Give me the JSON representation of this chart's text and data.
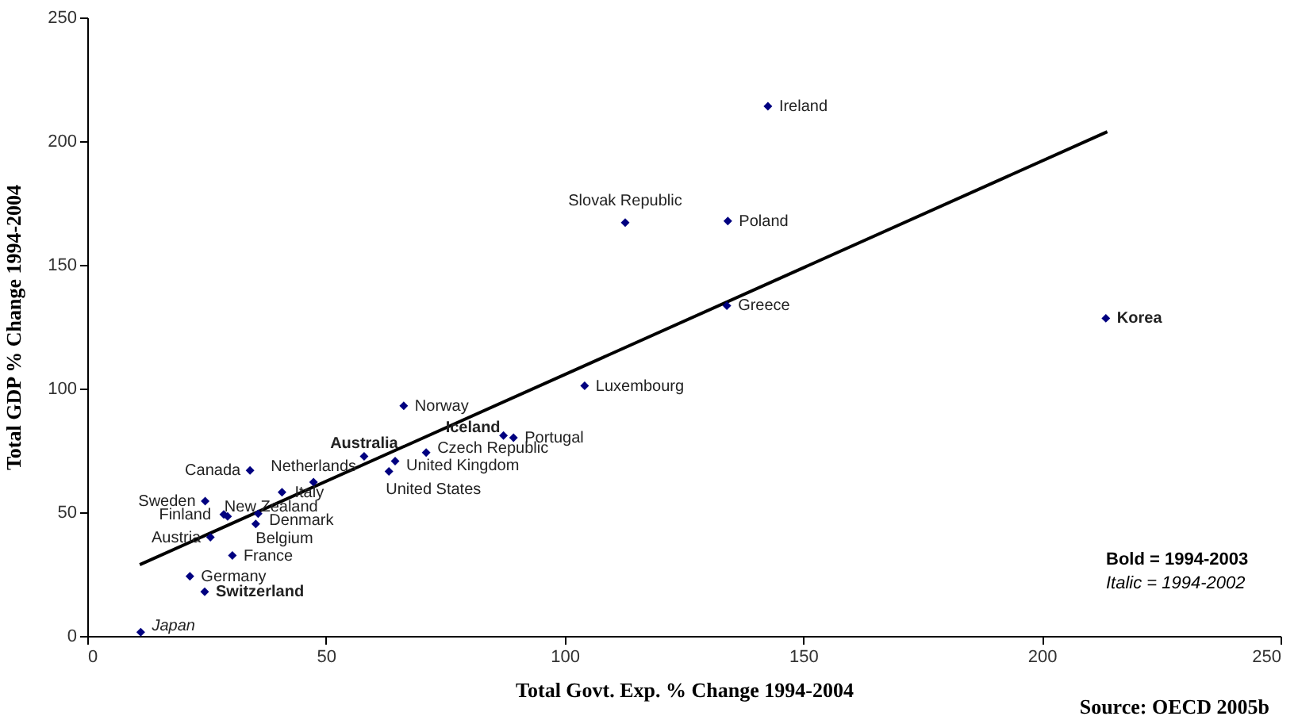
{
  "chart_data": {
    "type": "scatter",
    "xlabel": "Total Govt. Exp. % Change 1994-2004",
    "ylabel": "Total GDP % Change 1994-2004",
    "xlim": [
      0,
      250
    ],
    "xticks": [
      0,
      50,
      100,
      150,
      200,
      250
    ],
    "ylim": [
      0,
      250
    ],
    "yticks": [
      0,
      50,
      100,
      150,
      200,
      250
    ],
    "grid": false,
    "marker": "diamond",
    "series": [
      {
        "type": "scatter",
        "color": "#000080",
        "x": [
          142.6,
          112.7,
          134.2,
          134.0,
          104.2,
          66.3,
          89.3,
          71.0,
          64.5,
          63.2,
          34.1,
          47.4,
          40.8,
          24.7,
          29.4,
          28.6,
          35.8,
          35.3,
          25.8,
          30.4,
          21.5
        ],
        "values": [
          214.1,
          167.1,
          167.7,
          133.5,
          101.1,
          93.0,
          80.1,
          74.1,
          70.7,
          66.5,
          66.9,
          62.2,
          58.1,
          54.5,
          48.3,
          49.1,
          49.4,
          45.3,
          39.9,
          32.5,
          24.1
        ],
        "value_labels": [
          "Ireland",
          "Slovak Republic",
          "Poland",
          "Greece",
          "Luxembourg",
          "Norway",
          "Portugal",
          "Czech Republic",
          "United Kingdom",
          "United States",
          "Canada",
          "Netherlands",
          "Italy",
          "Sweden",
          "New Zealand",
          "Finland",
          "Denmark",
          "Belgium",
          "Austria",
          "France",
          "Germany"
        ]
      },
      {
        "type": "scatter",
        "color": "#000080",
        "x": [
          213.4,
          58.0,
          87.2,
          24.6
        ],
        "values": [
          128.4,
          72.6,
          81.0,
          17.9
        ],
        "value_labels": [
          "Korea",
          "Australia",
          "Iceland",
          "Switzerland"
        ]
      },
      {
        "type": "scatter",
        "color": "#000080",
        "x": [
          11.2
        ],
        "values": [
          1.5
        ],
        "value_labels": [
          "Japan"
        ]
      },
      {
        "type": "line",
        "color": "#000000",
        "x": [
          11.0,
          213.7
        ],
        "values": [
          28.8,
          203.8
        ],
        "line_style": "solid",
        "marker": "none"
      }
    ],
    "annotations": [
      "Bold = 1994-2003",
      "Italic = 1994-2002",
      "Source: OECD 2005b"
    ]
  }
}
